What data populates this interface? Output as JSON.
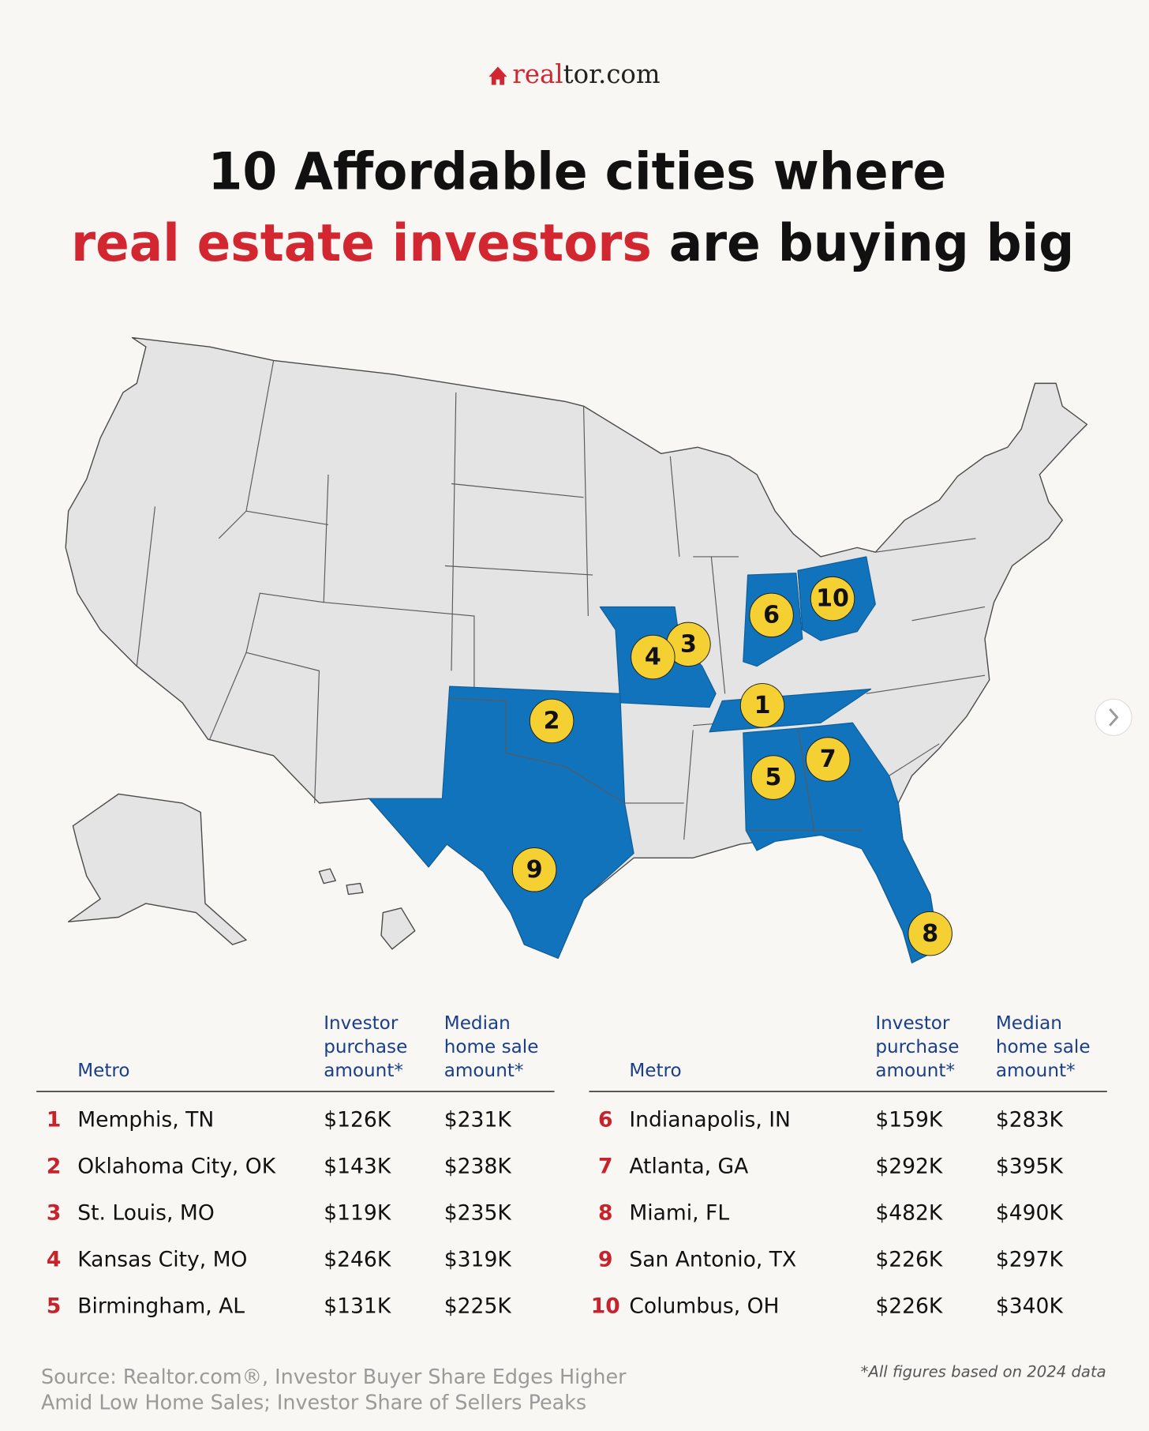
{
  "header": {
    "logo_red": "real",
    "logo_dark": "tor.com"
  },
  "title": {
    "line1": "10 Affordable cities where",
    "line2_highlight": "real estate investors",
    "line2_rest": " are buying big"
  },
  "tables": [
    {
      "headers": [
        [
          "Metro"
        ],
        [
          "Investor",
          "purchase",
          "amount*"
        ],
        [
          "Median",
          "home sale",
          "amount*"
        ]
      ],
      "rows": [
        [
          "1",
          "Memphis, TN",
          "$126K",
          "$231K"
        ],
        [
          "2",
          "Oklahoma City, OK",
          "$143K",
          "$238K"
        ],
        [
          "3",
          "St. Louis, MO",
          "$119K",
          "$235K"
        ],
        [
          "4",
          "Kansas City, MO",
          "$246K",
          "$319K"
        ],
        [
          "5",
          "Birmingham, AL",
          "$131K",
          "$225K"
        ]
      ]
    },
    {
      "headers": [
        [
          "Metro"
        ],
        [
          "Investor",
          "purchase",
          "amount*"
        ],
        [
          "Median",
          "home sale",
          "amount*"
        ]
      ],
      "rows": [
        [
          "6",
          "Indianapolis, IN",
          "$159K",
          "$283K"
        ],
        [
          "7",
          "Atlanta, GA",
          "$292K",
          "$395K"
        ],
        [
          "8",
          "Miami, FL",
          "$482K",
          "$490K"
        ],
        [
          "9",
          "San Antonio, TX",
          "$226K",
          "$297K"
        ],
        [
          "10",
          "Columbus, OH",
          "$226K",
          "$340K"
        ]
      ]
    }
  ],
  "source": [
    "Source: Realtor.com®, Investor Buyer Share Edges Higher",
    "Amid Low Home Sales; Investor Share of Sellers Peaks"
  ],
  "footnote": "*All figures based on 2024 data"
}
